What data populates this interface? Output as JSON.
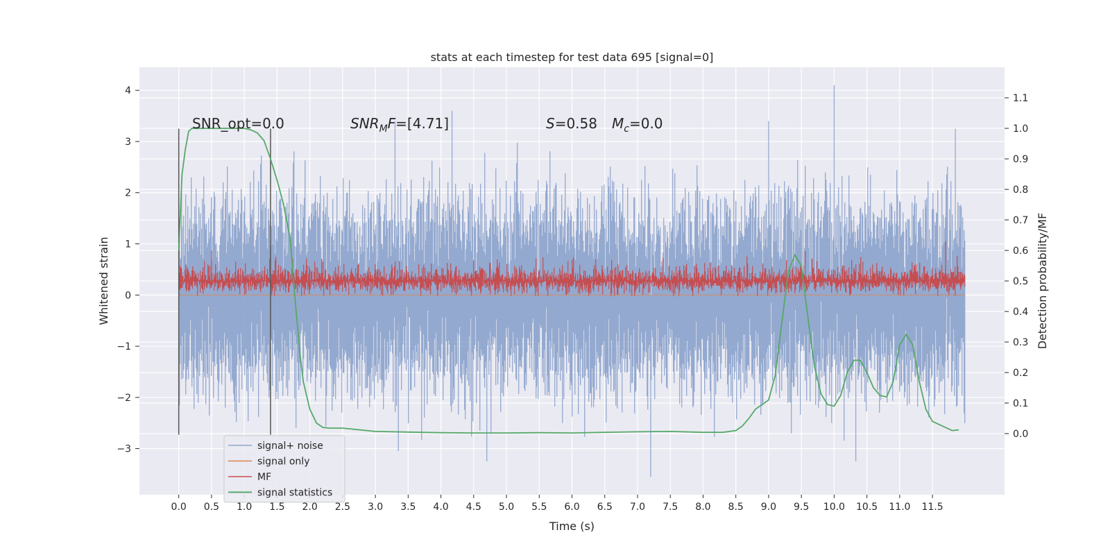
{
  "chart_data": {
    "type": "line",
    "title": "stats at each timestep for test data 695 [signal=0]",
    "xlabel": "Time (s)",
    "ylabel": "Whitened strain",
    "y2label": "Detection probability/MF",
    "xlim": [
      -0.6,
      12.6
    ],
    "ylim": [
      -3.9,
      4.45
    ],
    "y2lim": [
      -0.2,
      1.2
    ],
    "xticks": [
      0.0,
      0.5,
      1.0,
      1.5,
      2.0,
      2.5,
      3.0,
      3.5,
      4.0,
      4.5,
      5.0,
      5.5,
      6.0,
      6.5,
      7.0,
      7.5,
      8.0,
      8.5,
      9.0,
      9.5,
      10.0,
      10.5,
      11.0,
      11.5
    ],
    "xtick_labels": [
      "0.0",
      "0.5",
      "1.0",
      "1.5",
      "2.0",
      "2.5",
      "3.0",
      "3.5",
      "4.0",
      "4.5",
      "5.0",
      "5.5",
      "6.0",
      "6.5",
      "7.0",
      "7.5",
      "8.0",
      "8.5",
      "9.0",
      "9.5",
      "10.0",
      "10.5",
      "11.0",
      "11.5"
    ],
    "yticks": [
      4,
      3,
      2,
      1,
      0,
      -1,
      -2,
      -3
    ],
    "ytick_labels": [
      "4",
      "3",
      "2",
      "1",
      "0",
      "−1",
      "−2",
      "−3"
    ],
    "y2ticks": [
      1.1,
      1.0,
      0.9,
      0.8,
      0.7,
      0.6,
      0.5,
      0.4,
      0.3,
      0.2,
      0.1,
      0.0
    ],
    "y2tick_labels": [
      "1.1",
      "1.0",
      "0.9",
      "0.8",
      "0.7",
      "0.6",
      "0.5",
      "0.4",
      "0.3",
      "0.2",
      "0.1",
      "0.0"
    ],
    "grid": true,
    "legend_placement": "lower-left",
    "vlines": [
      {
        "x": 0.0,
        "ymin": -2.73,
        "ymax": 3.25,
        "color": "#555555"
      },
      {
        "x": 1.4,
        "ymin": -2.73,
        "ymax": 3.25,
        "color": "#555555"
      }
    ],
    "annotations": {
      "snr_opt": "SNR_opt=0.0",
      "snr_mf_base": "SNR",
      "snr_mf_sub": "M",
      "snr_mf_rest": "F=[4.71]",
      "s_label": "S",
      "s_rest": "=0.58",
      "mc_base": "M",
      "mc_sub": "c",
      "mc_rest": "=0.0"
    },
    "series": [
      {
        "name": "signal+ noise",
        "color": "#8fa5cc",
        "axis": "left",
        "t_range": [
          0.0,
          12.0
        ],
        "noise_sigma": 0.9,
        "peaks": [
          {
            "x": 10.0,
            "y": 4.1
          },
          {
            "x": 4.17,
            "y": 3.6
          },
          {
            "x": 9.0,
            "y": 3.4
          },
          {
            "x": 11.85,
            "y": 3.25
          },
          {
            "x": 3.3,
            "y": 3.4
          },
          {
            "x": 7.2,
            "y": -3.55
          },
          {
            "x": 3.35,
            "y": -3.05
          },
          {
            "x": 4.7,
            "y": -3.25
          },
          {
            "x": 10.33,
            "y": -3.25
          }
        ]
      },
      {
        "name": "signal only",
        "color": "#dd8452",
        "axis": "left",
        "x": [
          0.0,
          12.0
        ],
        "y": [
          0.0,
          0.0
        ]
      },
      {
        "name": "MF",
        "color": "#c44e52",
        "axis": "right",
        "t_range": [
          0.0,
          12.0
        ],
        "baseline": 0.5,
        "lower_bound": 0.45,
        "upper_band": 0.58,
        "spikes": [
          {
            "x": 11.7,
            "y": 0.63
          },
          {
            "x": 0.5,
            "y": 0.6
          }
        ]
      },
      {
        "name": "signal statistics",
        "color": "#55a868",
        "axis": "right",
        "x": [
          0.0,
          0.05,
          0.1,
          0.15,
          0.2,
          0.3,
          0.5,
          0.8,
          1.0,
          1.1,
          1.2,
          1.3,
          1.4,
          1.5,
          1.6,
          1.7,
          1.75,
          1.8,
          1.85,
          1.9,
          2.0,
          2.1,
          2.2,
          2.3,
          2.5,
          3.0,
          3.5,
          4.0,
          4.5,
          5.0,
          5.5,
          6.0,
          6.5,
          7.0,
          7.5,
          8.0,
          8.3,
          8.5,
          8.6,
          8.7,
          8.8,
          8.9,
          9.0,
          9.1,
          9.2,
          9.3,
          9.4,
          9.5,
          9.6,
          9.7,
          9.8,
          9.9,
          10.0,
          10.1,
          10.2,
          10.3,
          10.4,
          10.5,
          10.6,
          10.7,
          10.8,
          10.9,
          11.0,
          11.1,
          11.2,
          11.3,
          11.4,
          11.5,
          11.6,
          11.7,
          11.8,
          11.9
        ],
        "y": [
          0.6,
          0.85,
          0.93,
          0.99,
          1.0,
          1.0,
          1.0,
          1.0,
          1.0,
          0.995,
          0.985,
          0.96,
          0.9,
          0.83,
          0.75,
          0.64,
          0.5,
          0.38,
          0.26,
          0.17,
          0.08,
          0.035,
          0.02,
          0.018,
          0.018,
          0.007,
          0.005,
          0.003,
          0.002,
          0.002,
          0.003,
          0.002,
          0.004,
          0.006,
          0.007,
          0.004,
          0.004,
          0.01,
          0.025,
          0.05,
          0.08,
          0.095,
          0.11,
          0.19,
          0.36,
          0.53,
          0.585,
          0.55,
          0.38,
          0.22,
          0.13,
          0.095,
          0.09,
          0.125,
          0.2,
          0.24,
          0.24,
          0.2,
          0.15,
          0.125,
          0.12,
          0.17,
          0.29,
          0.325,
          0.29,
          0.17,
          0.08,
          0.04,
          0.03,
          0.02,
          0.01,
          0.012
        ]
      }
    ]
  }
}
